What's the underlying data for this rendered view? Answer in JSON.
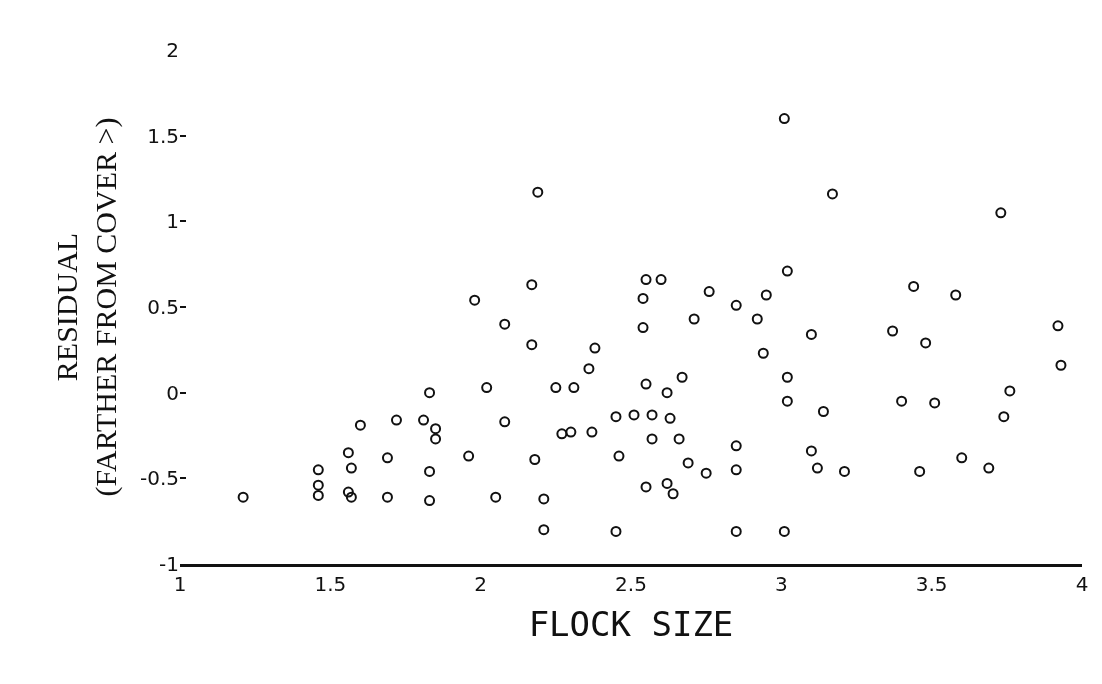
{
  "chart_data": {
    "type": "scatter",
    "xlabel": "FLOCK SIZE",
    "ylabel": "RESIDUAL\n(FARTHER FROM COVER >)",
    "xlim": [
      1,
      4
    ],
    "ylim": [
      -1,
      2
    ],
    "xticks": [
      1,
      1.5,
      2,
      2.5,
      3,
      3.5,
      4
    ],
    "yticks": [
      -1,
      -0.5,
      0,
      0.5,
      1,
      1.5,
      2
    ],
    "grid": false,
    "marker": "circle",
    "series": [
      {
        "color": "#111111",
        "x": [
          1.21,
          1.46,
          1.46,
          1.57,
          1.57,
          1.6,
          1.72,
          1.81,
          1.85,
          1.85,
          1.83,
          1.56,
          1.69,
          1.96,
          1.83,
          1.83,
          1.56,
          1.69,
          1.46,
          2.02,
          1.98,
          2.05,
          2.19,
          2.17,
          2.08,
          2.17,
          2.08,
          2.18,
          2.21,
          2.21,
          2.45,
          2.38,
          2.36,
          2.31,
          2.25,
          2.27,
          2.3,
          2.37,
          2.46,
          2.55,
          2.6,
          2.54,
          2.54,
          2.71,
          2.76,
          2.85,
          2.92,
          2.95,
          3.02,
          2.94,
          2.55,
          2.62,
          2.67,
          2.45,
          2.51,
          2.57,
          2.63,
          2.57,
          2.66,
          2.55,
          2.64,
          2.62,
          2.69,
          2.75,
          2.85,
          2.85,
          2.85,
          3.01,
          3.02,
          3.02,
          3.01,
          3.17,
          3.73,
          3.44,
          3.58,
          3.1,
          3.37,
          3.48,
          3.92,
          3.93,
          3.14,
          3.4,
          3.51,
          3.76,
          3.74,
          3.1,
          3.12,
          3.21,
          3.46,
          3.6,
          3.69
        ],
        "values": [
          -0.61,
          -0.45,
          -0.6,
          -0.61,
          -0.44,
          -0.19,
          -0.16,
          -0.16,
          -0.21,
          -0.27,
          0.0,
          -0.35,
          -0.38,
          -0.37,
          -0.46,
          -0.63,
          -0.58,
          -0.61,
          -0.54,
          0.03,
          0.54,
          -0.61,
          1.17,
          0.63,
          0.4,
          0.28,
          -0.17,
          -0.39,
          -0.62,
          -0.8,
          -0.81,
          0.26,
          0.14,
          0.03,
          0.03,
          -0.24,
          -0.23,
          -0.23,
          -0.37,
          0.66,
          0.66,
          0.55,
          0.38,
          0.43,
          0.59,
          0.51,
          0.43,
          0.57,
          0.71,
          0.23,
          0.05,
          0.0,
          0.09,
          -0.14,
          -0.13,
          -0.13,
          -0.15,
          -0.27,
          -0.27,
          -0.55,
          -0.59,
          -0.53,
          -0.41,
          -0.47,
          -0.31,
          -0.45,
          -0.81,
          -0.81,
          0.09,
          -0.05,
          1.6,
          1.16,
          1.05,
          0.62,
          0.57,
          0.34,
          0.36,
          0.29,
          0.39,
          0.16,
          -0.11,
          -0.05,
          -0.06,
          0.01,
          -0.14,
          -0.34,
          -0.44,
          -0.46,
          -0.46,
          -0.38,
          -0.44
        ]
      }
    ]
  }
}
